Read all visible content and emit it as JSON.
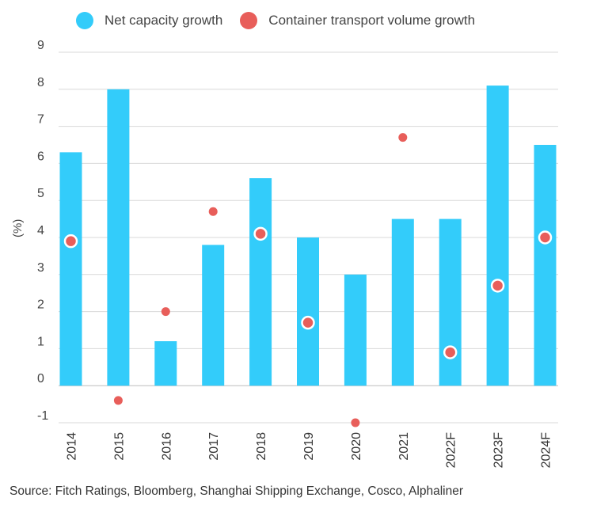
{
  "chart_data": {
    "type": "bar",
    "categories": [
      "2014",
      "2015",
      "2016",
      "2017",
      "2018",
      "2019",
      "2020",
      "2021",
      "2022F",
      "2023F",
      "2024F"
    ],
    "series": [
      {
        "name": "Net capacity growth",
        "kind": "bar",
        "color": "#33ccfa",
        "values": [
          6.3,
          8.0,
          1.2,
          3.8,
          5.6,
          4.0,
          3.0,
          4.5,
          4.5,
          8.1,
          6.5
        ]
      },
      {
        "name": "Container transport volume growth",
        "kind": "scatter",
        "color": "#e85e5a",
        "values": [
          3.9,
          -0.4,
          2.0,
          4.7,
          4.1,
          1.7,
          -1.0,
          6.7,
          0.9,
          2.7,
          4.0
        ]
      }
    ],
    "ylabel": "(%)",
    "ylim": [
      -1,
      9
    ],
    "yticks": [
      -1,
      0,
      1,
      2,
      3,
      4,
      5,
      6,
      7,
      8,
      9
    ],
    "grid": true,
    "legend": "top-left"
  },
  "source": "Source: Fitch Ratings, Bloomberg, Shanghai Shipping Exchange,  Cosco, Alphaliner"
}
